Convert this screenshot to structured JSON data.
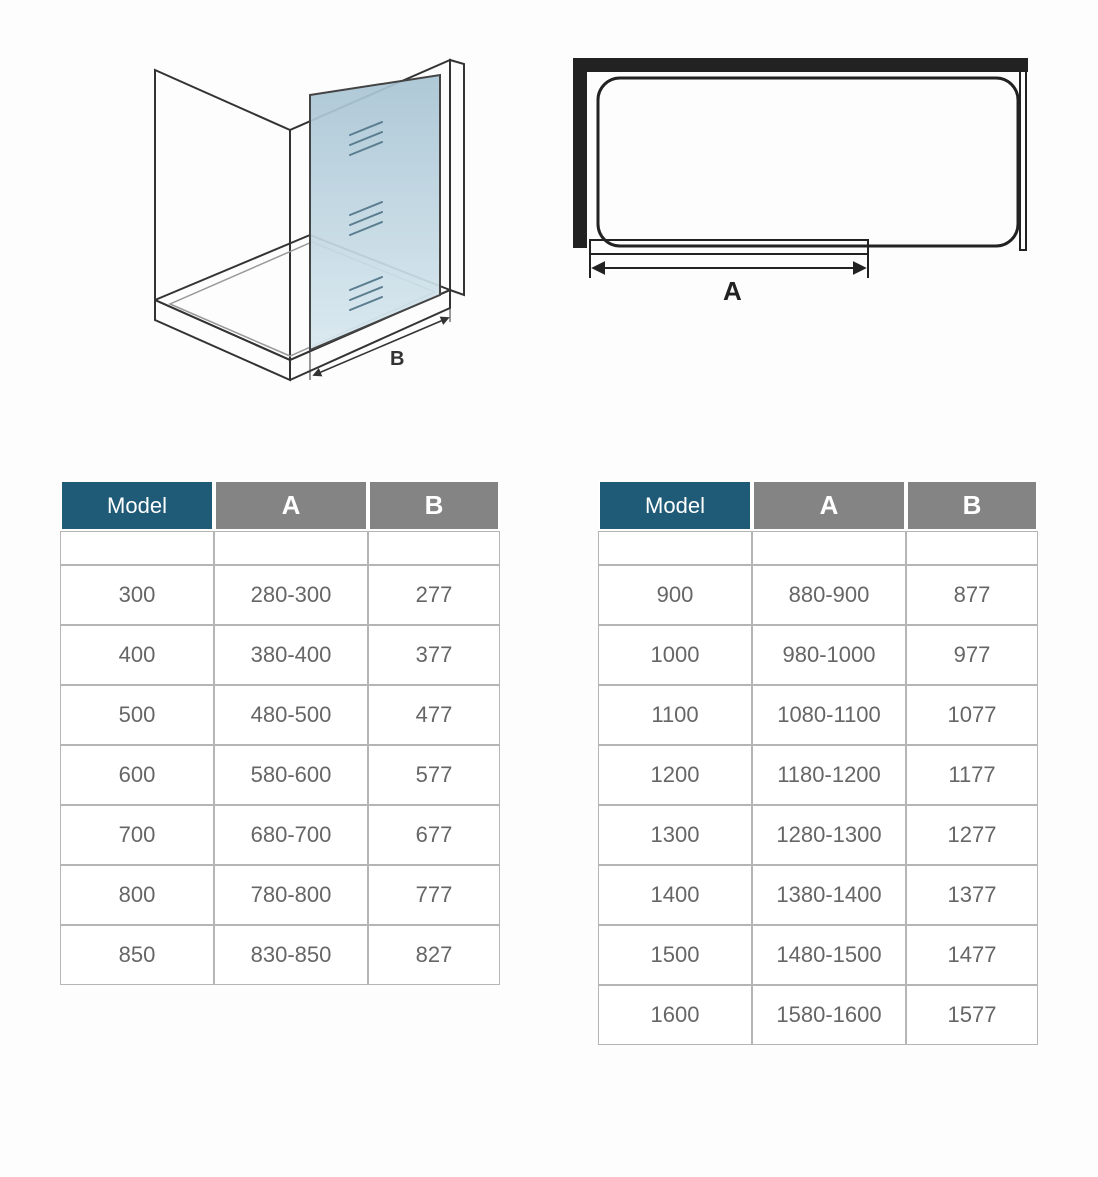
{
  "colors": {
    "model_header_bg": "#1f5b77",
    "dim_header_bg": "#848484",
    "header_text": "#ffffff",
    "cell_border": "#b5b5b5",
    "cell_text": "#666666",
    "glass_gradient_start": "#a8c4d4",
    "glass_gradient_end": "#d8e8ef",
    "diagram_line": "#333333"
  },
  "diagrams": {
    "iso_label": "B",
    "plan_label": "A"
  },
  "headers": {
    "model": "Model",
    "a": "A",
    "b": "B"
  },
  "table_left": {
    "columns": [
      "Model",
      "A",
      "B"
    ],
    "rows": [
      [
        "300",
        "280-300",
        "277"
      ],
      [
        "400",
        "380-400",
        "377"
      ],
      [
        "500",
        "480-500",
        "477"
      ],
      [
        "600",
        "580-600",
        "577"
      ],
      [
        "700",
        "680-700",
        "677"
      ],
      [
        "800",
        "780-800",
        "777"
      ],
      [
        "850",
        "830-850",
        "827"
      ]
    ]
  },
  "table_right": {
    "columns": [
      "Model",
      "A",
      "B"
    ],
    "rows": [
      [
        "900",
        "880-900",
        "877"
      ],
      [
        "1000",
        "980-1000",
        "977"
      ],
      [
        "1100",
        "1080-1100",
        "1077"
      ],
      [
        "1200",
        "1180-1200",
        "1177"
      ],
      [
        "1300",
        "1280-1300",
        "1277"
      ],
      [
        "1400",
        "1380-1400",
        "1377"
      ],
      [
        "1500",
        "1480-1500",
        "1477"
      ],
      [
        "1600",
        "1580-1600",
        "1577"
      ]
    ]
  }
}
